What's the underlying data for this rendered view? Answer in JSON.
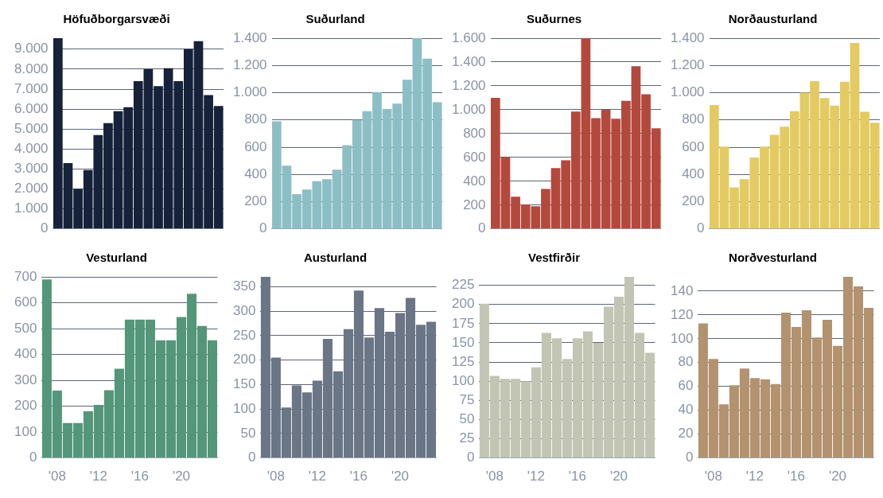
{
  "chart_data": [
    {
      "type": "bar",
      "title": "Höfuðborgarsvæði",
      "categories": [
        null,
        null,
        null,
        null,
        null,
        null,
        null,
        null,
        null,
        null,
        null,
        null,
        null,
        null,
        null,
        null,
        null
      ],
      "values": [
        9550,
        3300,
        2000,
        2950,
        4700,
        5300,
        5900,
        6100,
        7400,
        8000,
        7150,
        8050,
        7400,
        9000,
        9400,
        6700,
        6150
      ],
      "color": "#16213a",
      "ylim": [
        0,
        9550
      ],
      "yticks": [
        0,
        {
          "value": 1000,
          "label": "1.000"
        },
        {
          "value": 2000,
          "label": "2.000"
        },
        {
          "value": 3000,
          "label": "3.000"
        },
        {
          "value": 4000,
          "label": "4.000"
        },
        {
          "value": 5000,
          "label": "5.000"
        },
        {
          "value": 6000,
          "label": "6.000"
        },
        {
          "value": 7000,
          "label": "7.000"
        },
        {
          "value": 8000,
          "label": "8.000"
        },
        {
          "value": 9000,
          "label": "9.000"
        }
      ],
      "grid": "y",
      "tick_labels": "y"
    },
    {
      "type": "bar",
      "title": "Suðurland",
      "categories": [
        null,
        null,
        null,
        null,
        null,
        null,
        null,
        null,
        null,
        null,
        null,
        null,
        null,
        null,
        null,
        null,
        null
      ],
      "values": [
        790,
        465,
        255,
        290,
        350,
        365,
        435,
        615,
        800,
        865,
        1005,
        880,
        920,
        1095,
        1400,
        1250,
        930
      ],
      "color": "#8cbfc5",
      "ylim": [
        0,
        1400
      ],
      "yticks": [
        0,
        200,
        400,
        600,
        800,
        {
          "value": 1000,
          "label": "1.000"
        },
        {
          "value": 1200,
          "label": "1.200"
        },
        {
          "value": 1400,
          "label": "1.400"
        }
      ],
      "grid": "y",
      "tick_labels": "y"
    },
    {
      "type": "bar",
      "title": "Suðurnes",
      "categories": [
        null,
        null,
        null,
        null,
        null,
        null,
        null,
        null,
        null,
        null,
        null,
        null,
        null,
        null,
        null,
        null,
        null
      ],
      "values": [
        1100,
        605,
        270,
        205,
        190,
        335,
        510,
        575,
        985,
        1600,
        930,
        1000,
        925,
        1075,
        1365,
        1130,
        845
      ],
      "color": "#b3493d",
      "ylim": [
        0,
        1600
      ],
      "yticks": [
        0,
        200,
        400,
        600,
        800,
        {
          "value": 1000,
          "label": "1.000"
        },
        {
          "value": 1200,
          "label": "1.200"
        },
        {
          "value": 1400,
          "label": "1.400"
        },
        {
          "value": 1600,
          "label": "1.600"
        }
      ],
      "grid": "y",
      "tick_labels": "y"
    },
    {
      "type": "bar",
      "title": "Norðausturland",
      "categories": [
        null,
        null,
        null,
        null,
        null,
        null,
        null,
        null,
        null,
        null,
        null,
        null,
        null,
        null,
        null,
        null,
        null
      ],
      "values": [
        910,
        605,
        305,
        365,
        525,
        605,
        690,
        750,
        865,
        1000,
        1085,
        960,
        905,
        1080,
        1365,
        860,
        780
      ],
      "color": "#e3cb62",
      "ylim": [
        0,
        1400
      ],
      "yticks": [
        0,
        200,
        400,
        600,
        800,
        {
          "value": 1000,
          "label": "1.000"
        },
        {
          "value": 1200,
          "label": "1.200"
        },
        {
          "value": 1400,
          "label": "1.400"
        }
      ],
      "grid": "y",
      "tick_labels": "y"
    },
    {
      "type": "bar",
      "title": "Vesturland",
      "categories": [
        null,
        "'08",
        null,
        null,
        null,
        "'12",
        null,
        null,
        null,
        "'16",
        null,
        null,
        null,
        "'20",
        null,
        null,
        null
      ],
      "values": [
        690,
        260,
        135,
        135,
        180,
        205,
        262,
        345,
        535,
        535,
        535,
        455,
        455,
        545,
        635,
        510,
        455
      ],
      "color": "#54967a",
      "ylim": [
        0,
        700
      ],
      "yticks": [
        0,
        100,
        200,
        300,
        400,
        500,
        600,
        700
      ],
      "grid": "y"
    },
    {
      "type": "bar",
      "title": "Austurland",
      "categories": [
        null,
        "'08",
        null,
        null,
        null,
        "'12",
        null,
        null,
        null,
        "'16",
        null,
        null,
        null,
        "'20",
        null,
        null,
        null
      ],
      "values": [
        370,
        205,
        103,
        148,
        134,
        158,
        243,
        177,
        263,
        342,
        246,
        306,
        258,
        296,
        327,
        272,
        278
      ],
      "color": "#6a7586",
      "ylim": [
        0,
        370
      ],
      "yticks": [
        0,
        50,
        100,
        150,
        200,
        250,
        300,
        350
      ],
      "grid": "y"
    },
    {
      "type": "bar",
      "title": "Vestfirðir",
      "categories": [
        null,
        "'08",
        null,
        null,
        null,
        "'12",
        null,
        null,
        null,
        "'16",
        null,
        null,
        null,
        "'20",
        null,
        null,
        null
      ],
      "values": [
        201,
        107,
        103,
        103,
        100,
        118,
        163,
        156,
        129,
        156,
        165,
        150,
        197,
        210,
        236,
        163,
        137
      ],
      "color": "#c2c5b3",
      "ylim": [
        0,
        236
      ],
      "yticks": [
        0,
        25,
        50,
        75,
        100,
        125,
        150,
        175,
        200,
        225
      ],
      "grid": "y"
    },
    {
      "type": "bar",
      "title": "Norðvesturland",
      "categories": [
        null,
        "'08",
        null,
        null,
        null,
        "'12",
        null,
        null,
        null,
        "'16",
        null,
        null,
        null,
        "'20",
        null,
        null,
        null
      ],
      "values": [
        113,
        83,
        45,
        61,
        75,
        67,
        66,
        62,
        122,
        110,
        124,
        101,
        116,
        94,
        152,
        144,
        126
      ],
      "color": "#b39270",
      "ylim": [
        0,
        152
      ],
      "yticks": [
        0,
        20,
        40,
        60,
        80,
        100,
        120,
        140
      ],
      "grid": "y"
    }
  ]
}
